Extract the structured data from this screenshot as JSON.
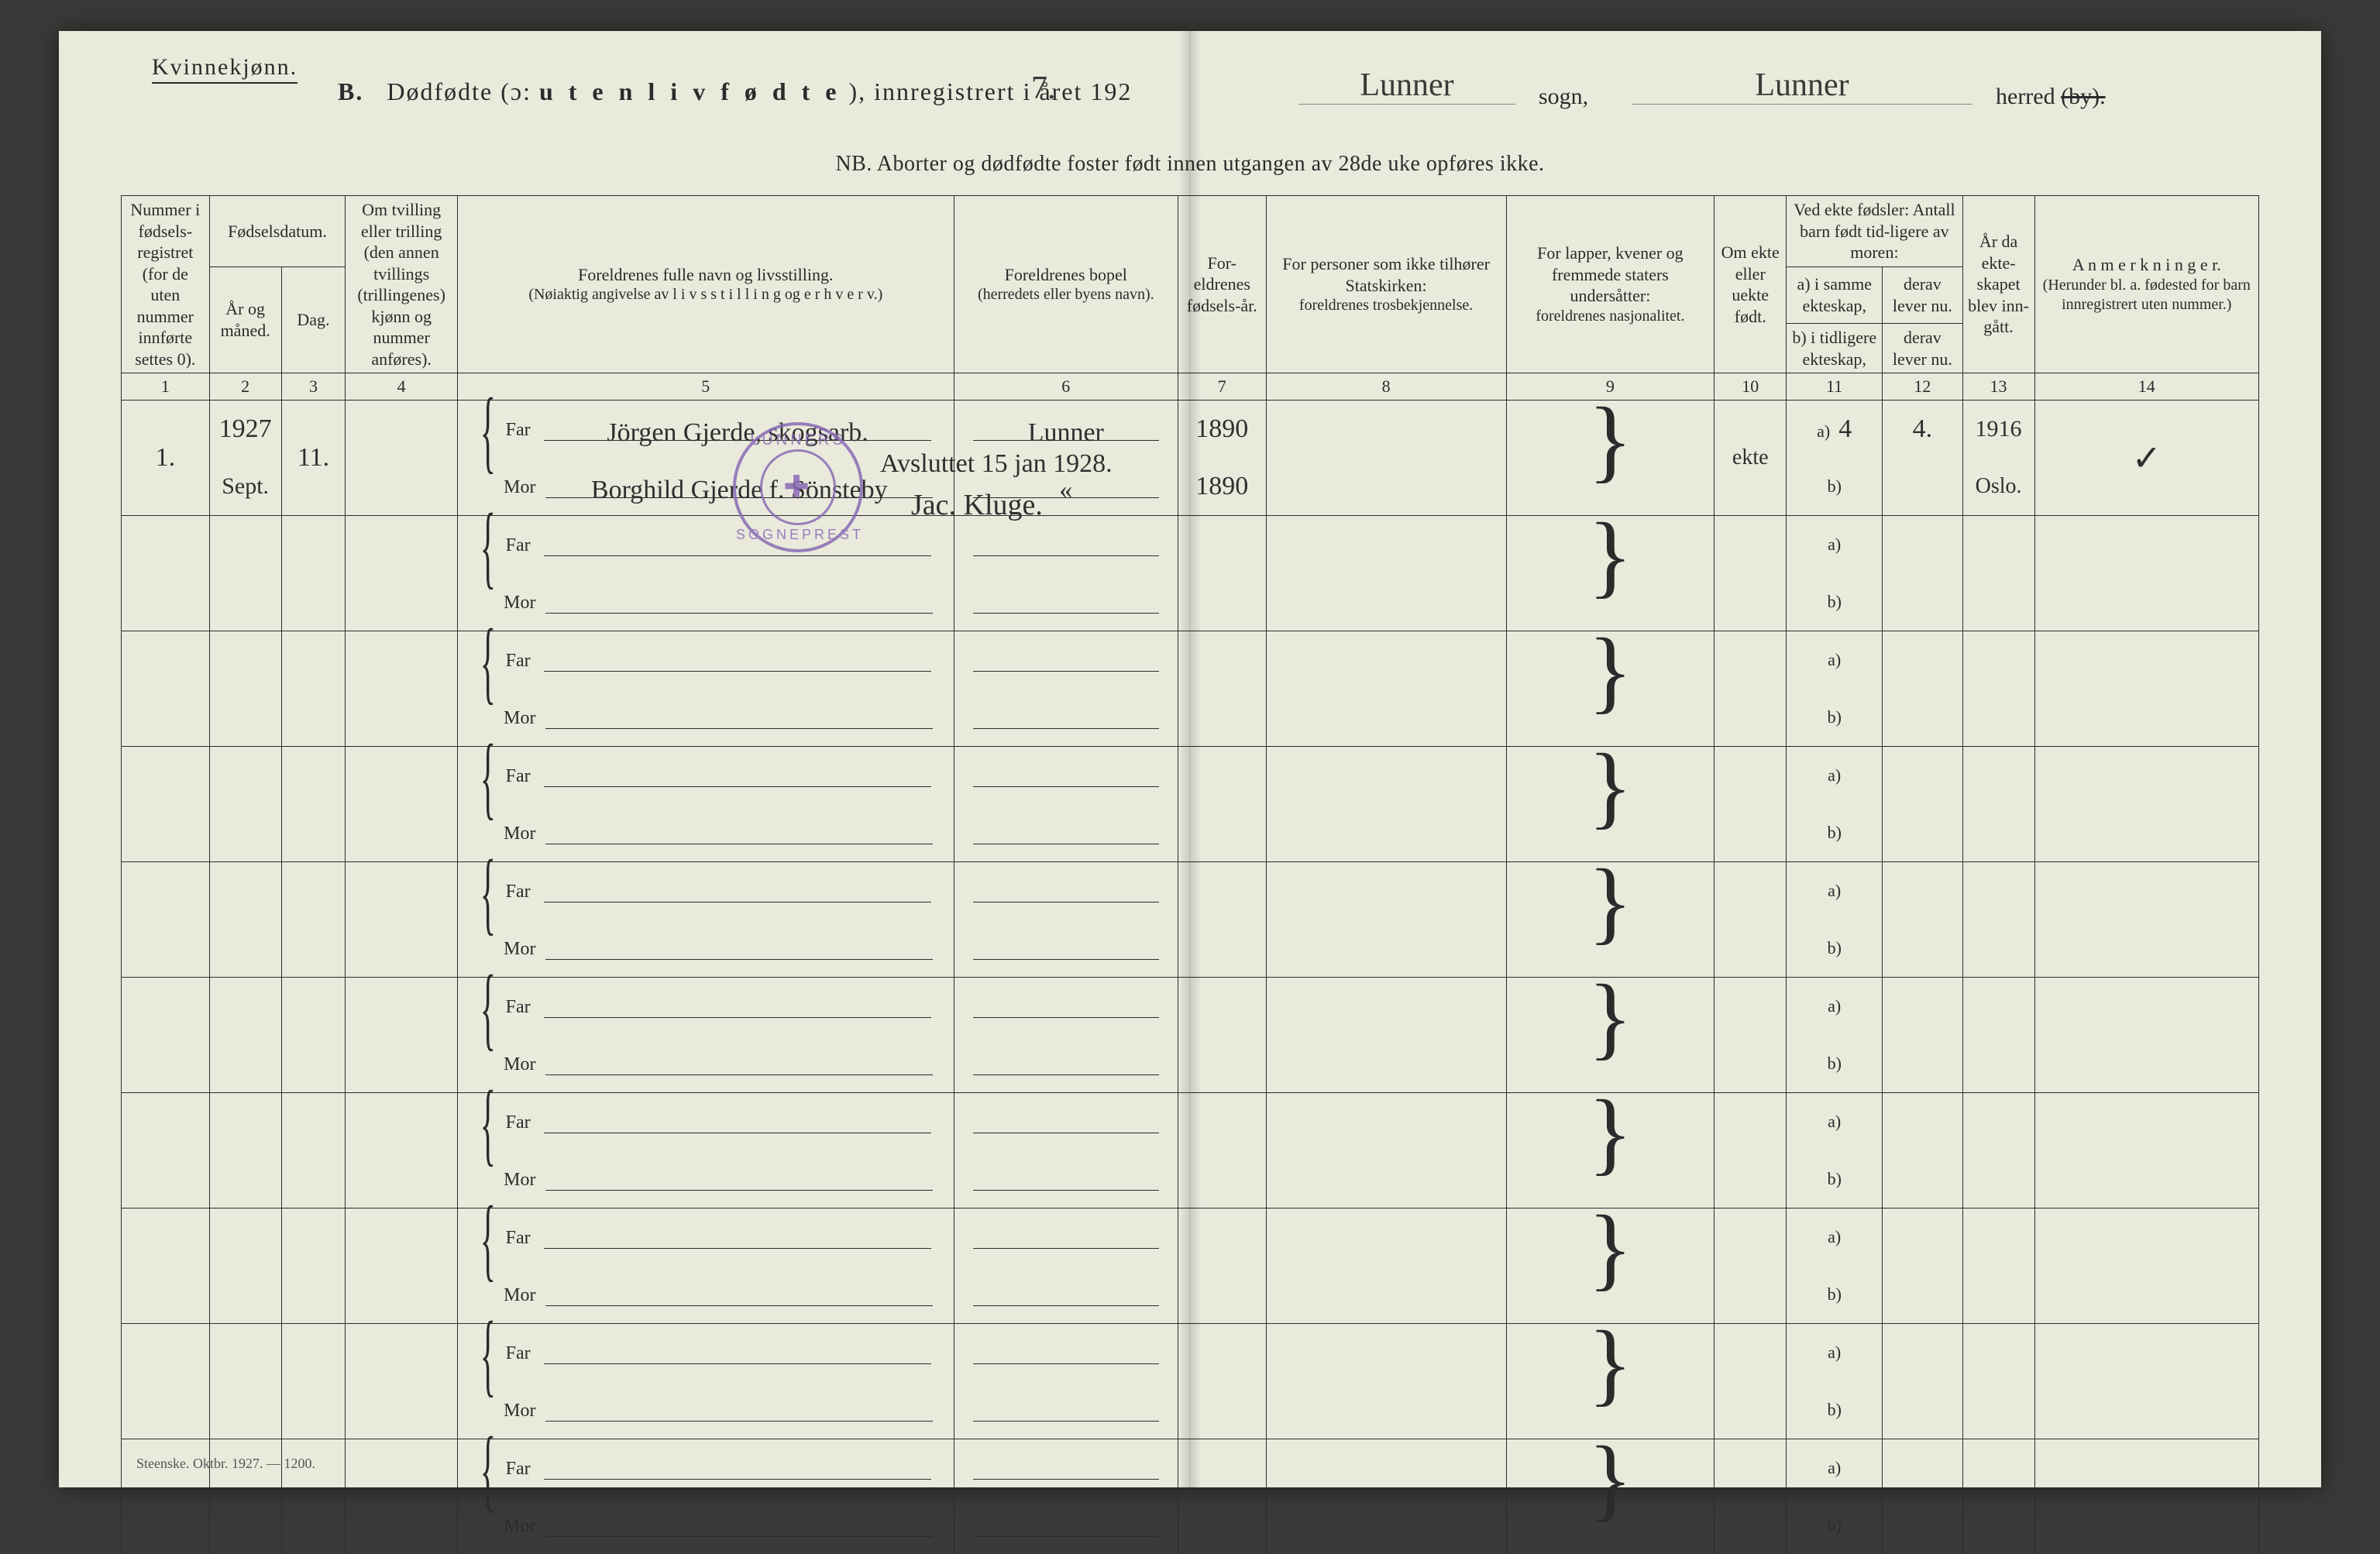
{
  "header": {
    "gender": "Kvinnekjønn.",
    "section_letter": "B.",
    "title_prefix": "Dødfødte (ɔ:",
    "title_emph": "u t e n   l i v   f ø d t e",
    "title_suffix": "), innregistrert i året 192",
    "year_digit": "7.",
    "sogn_label": "sogn,",
    "sogn_value": "Lunner",
    "herred_label": "herred",
    "by_struck": "(by).",
    "herred_value": "Lunner",
    "nb_line": "NB.  Aborter og dødfødte foster født innen utgangen av 28de uke opføres ikke."
  },
  "columns": {
    "c1": "Nummer i fødsels-registret (for de uten nummer innførte settes 0).",
    "c2_group": "Fødselsdatum.",
    "c2": "År og måned.",
    "c3": "Dag.",
    "c4": "Om tvilling eller trilling (den annen tvillings (trillingenes) kjønn og nummer anføres).",
    "c5_label": "Foreldrenes fulle navn og livsstilling.",
    "c5_sub": "(Nøiaktig angivelse av  l i v s s t i l l i n g  og  e r h v e r v.)",
    "c6_label": "Foreldrenes bopel",
    "c6_sub": "(herredets eller byens navn).",
    "c7": "For-eldrenes fødsels-år.",
    "c8_label": "For personer som ikke tilhører Statskirken:",
    "c8_sub": "foreldrenes trosbekjennelse.",
    "c9_label": "For lapper, kvener og fremmede staters undersåtter:",
    "c9_sub": "foreldrenes nasjonalitet.",
    "c10": "Om ekte eller uekte født.",
    "c11_12_top": "Ved ekte fødsler: Antall barn født tid-ligere av moren:",
    "c11": "a) i samme ekteskap,",
    "c11b": "b) i tidligere ekteskap,",
    "c12": "derav lever nu.",
    "c12b": "derav lever nu.",
    "c13": "År da ekte-skapet blev inn-gått.",
    "c14_label": "A n m e r k n i n g e r.",
    "c14_sub": "(Herunder bl. a. fødested for barn innregistrert uten nummer.)"
  },
  "colnums": [
    "1",
    "2",
    "3",
    "4",
    "5",
    "6",
    "7",
    "8",
    "9",
    "10",
    "11",
    "12",
    "13",
    "14"
  ],
  "parent_labels": {
    "far": "Far",
    "mor": "Mor"
  },
  "ab_labels": {
    "a": "a)",
    "b": "b)"
  },
  "entry1": {
    "number": "1.",
    "year_month": "1927",
    "month_abbr": "Sept.",
    "day": "11.",
    "far_name": "Jörgen Gjerde, skogsarb.",
    "mor_name": "Borghild Gjerde f. Sönsteby",
    "bopel_far": "Lunner",
    "bopel_mor": "«",
    "far_birth": "1890",
    "mor_birth": "1890",
    "ekte": "ekte",
    "c11a": "4",
    "c12a": "4.",
    "c13_top": "1916",
    "c13_bot": "Oslo.",
    "anm": "✓"
  },
  "stamp": {
    "top": "LUNNERS",
    "bottom": "SOGNEPREST",
    "center": "✚",
    "note": "Avsluttet 15 jan 1928.",
    "sign": "Jac. Kluge."
  },
  "footer": "Steenske.  Oktbr. 1927. — 1200.",
  "colors": {
    "paper": "#e9eadc",
    "ink": "#2b2b2b",
    "stamp": "#8a6bb5",
    "background": "#3a3a38"
  }
}
